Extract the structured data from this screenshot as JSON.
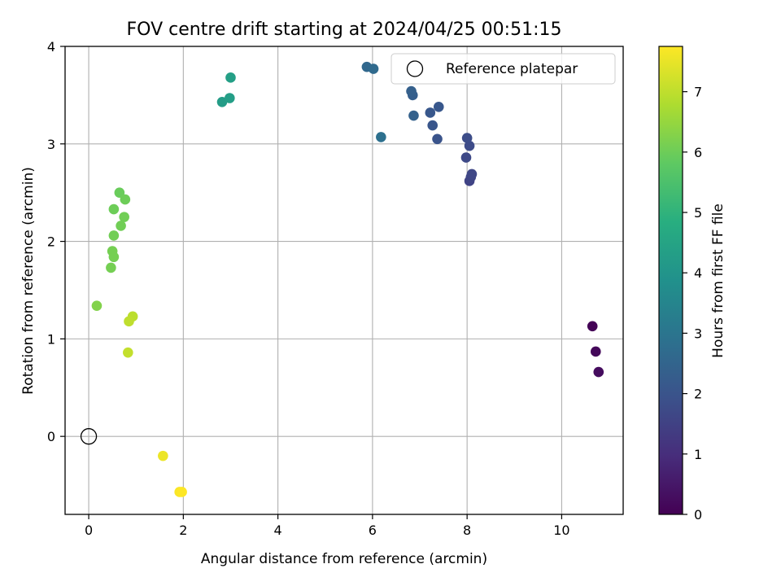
{
  "chart_data": {
    "type": "scatter",
    "title": "FOV centre drift starting at 2024/04/25 00:51:15",
    "xlabel": "Angular distance from reference (arcmin)",
    "ylabel": "Rotation from reference (arcmin)",
    "xlim": [
      -0.5,
      11.3
    ],
    "ylim": [
      -0.8,
      4.0
    ],
    "xticks": [
      "0",
      "2",
      "4",
      "6",
      "8",
      "10"
    ],
    "yticks": [
      "0",
      "1",
      "2",
      "3",
      "4"
    ],
    "grid": true,
    "legend": {
      "position": "top-right",
      "entries": [
        "Reference platepar"
      ]
    },
    "reference_point": {
      "x": 0,
      "y": 0
    },
    "colorbar": {
      "label": "Hours from first FF file",
      "range": [
        0,
        7.75
      ],
      "ticks": [
        "0",
        "1",
        "2",
        "3",
        "4",
        "5",
        "6",
        "7"
      ],
      "colormap": "viridis"
    },
    "points": [
      {
        "x": 10.65,
        "y": 1.13,
        "c": 0.05
      },
      {
        "x": 10.72,
        "y": 0.87,
        "c": 0.15
      },
      {
        "x": 10.78,
        "y": 0.66,
        "c": 0.25
      },
      {
        "x": 8.05,
        "y": 2.62,
        "c": 1.55
      },
      {
        "x": 8.08,
        "y": 2.66,
        "c": 1.6
      },
      {
        "x": 8.1,
        "y": 2.69,
        "c": 1.65
      },
      {
        "x": 7.98,
        "y": 2.86,
        "c": 1.7
      },
      {
        "x": 8.05,
        "y": 2.98,
        "c": 1.75
      },
      {
        "x": 8.0,
        "y": 3.06,
        "c": 1.8
      },
      {
        "x": 7.37,
        "y": 3.05,
        "c": 2.0
      },
      {
        "x": 7.27,
        "y": 3.19,
        "c": 2.05
      },
      {
        "x": 7.22,
        "y": 3.32,
        "c": 2.1
      },
      {
        "x": 7.4,
        "y": 3.38,
        "c": 2.1
      },
      {
        "x": 6.85,
        "y": 3.5,
        "c": 2.3
      },
      {
        "x": 6.82,
        "y": 3.54,
        "c": 2.35
      },
      {
        "x": 6.87,
        "y": 3.29,
        "c": 2.4
      },
      {
        "x": 5.88,
        "y": 3.79,
        "c": 2.6
      },
      {
        "x": 6.02,
        "y": 3.77,
        "c": 2.65
      },
      {
        "x": 6.18,
        "y": 3.07,
        "c": 2.85
      },
      {
        "x": 2.82,
        "y": 3.43,
        "c": 4.25
      },
      {
        "x": 2.98,
        "y": 3.47,
        "c": 4.3
      },
      {
        "x": 3.0,
        "y": 3.68,
        "c": 4.35
      },
      {
        "x": 0.65,
        "y": 2.5,
        "c": 5.95
      },
      {
        "x": 0.77,
        "y": 2.43,
        "c": 6.0
      },
      {
        "x": 0.53,
        "y": 2.33,
        "c": 6.0
      },
      {
        "x": 0.75,
        "y": 2.25,
        "c": 6.05
      },
      {
        "x": 0.68,
        "y": 2.16,
        "c": 6.05
      },
      {
        "x": 0.53,
        "y": 2.06,
        "c": 6.05
      },
      {
        "x": 0.5,
        "y": 1.9,
        "c": 6.1
      },
      {
        "x": 0.53,
        "y": 1.84,
        "c": 6.1
      },
      {
        "x": 0.47,
        "y": 1.73,
        "c": 6.1
      },
      {
        "x": 0.17,
        "y": 1.34,
        "c": 6.25
      },
      {
        "x": 0.93,
        "y": 1.23,
        "c": 6.95
      },
      {
        "x": 0.85,
        "y": 1.18,
        "c": 7.0
      },
      {
        "x": 0.83,
        "y": 0.86,
        "c": 7.05
      },
      {
        "x": 1.57,
        "y": -0.2,
        "c": 7.55
      },
      {
        "x": 1.92,
        "y": -0.57,
        "c": 7.7
      },
      {
        "x": 1.97,
        "y": -0.57,
        "c": 7.75
      }
    ]
  }
}
